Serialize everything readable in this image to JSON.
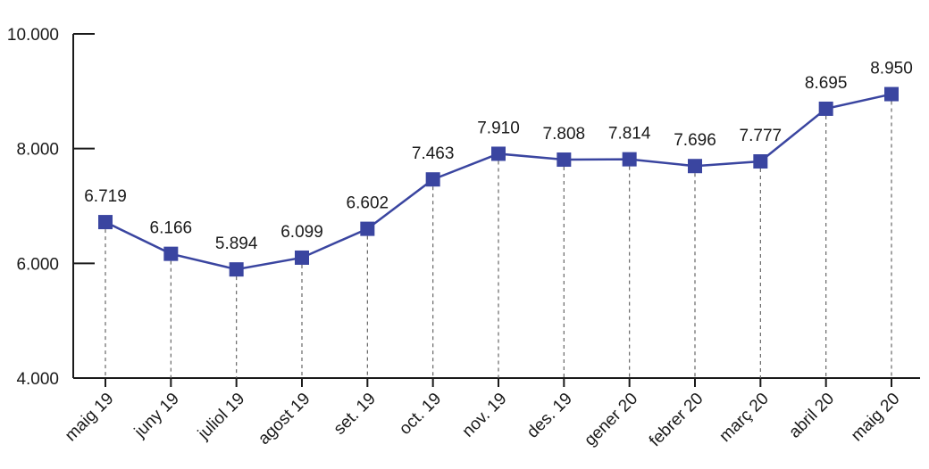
{
  "chart_data": {
    "type": "line",
    "categories": [
      "maig 19",
      "juny 19",
      "juliol 19",
      "agost 19",
      "set. 19",
      "oct. 19",
      "nov. 19",
      "des. 19",
      "gener 20",
      "febrer 20",
      "març 20",
      "abril 20",
      "maig 20"
    ],
    "series": [
      {
        "values": [
          6719,
          6166,
          5894,
          6099,
          6602,
          7463,
          7910,
          7808,
          7814,
          7696,
          7777,
          8695,
          8950
        ],
        "data_labels": [
          "6.719",
          "6.166",
          "5.894",
          "6.099",
          "6.602",
          "7.463",
          "7.910",
          "7.808",
          "7.814",
          "7.696",
          "7.777",
          "8.695",
          "8.950"
        ]
      }
    ],
    "y_ticks": [
      4000,
      6000,
      8000,
      10000
    ],
    "y_tick_labels": [
      "4.000",
      "6.000",
      "8.000",
      "10.000"
    ],
    "ylim": [
      4000,
      10000
    ],
    "title": "",
    "xlabel": "",
    "ylabel": "",
    "grid": false,
    "drop_lines": "dashed",
    "marker": "square",
    "colors": {
      "series": "#3a45a0",
      "axis": "#1a1a1a",
      "drop_line": "#666666"
    }
  }
}
